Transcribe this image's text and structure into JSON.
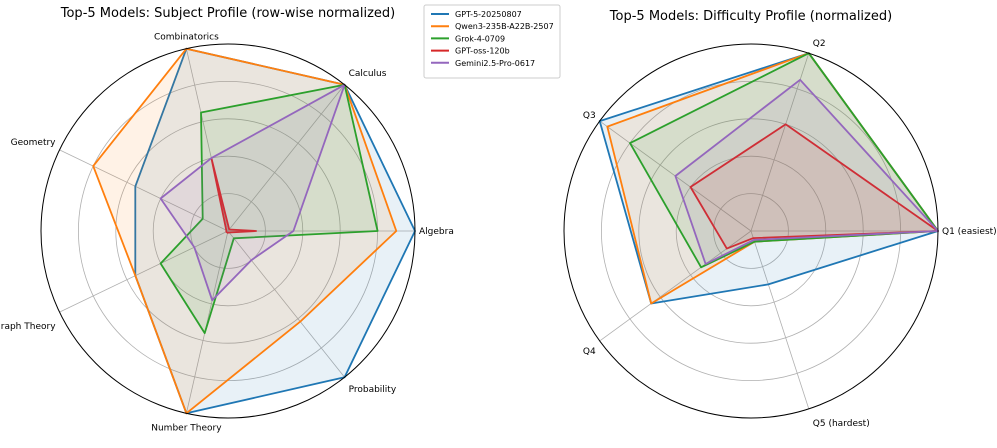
{
  "chart_data": [
    {
      "type": "radar",
      "title": "Top-5 Models: Subject Profile (row-wise normalized)",
      "categories": [
        "Algebra",
        "Calculus",
        "Combinatorics",
        "Geometry",
        "Graph Theory",
        "Number Theory",
        "Probability"
      ],
      "rlim": [
        0,
        1
      ],
      "grid": true,
      "legend": "right",
      "series": [
        {
          "name": "GPT-5-20250807",
          "color": "#1f77b4",
          "values": [
            1.0,
            1.0,
            1.0,
            0.55,
            0.55,
            1.0,
            1.0
          ]
        },
        {
          "name": "Qwen3-235B-A22B-2507",
          "color": "#ff7f0e",
          "values": [
            0.9,
            1.0,
            1.0,
            0.8,
            0.55,
            1.0,
            0.62
          ]
        },
        {
          "name": "Grok-4-0709",
          "color": "#2ca02c",
          "values": [
            0.8,
            1.0,
            0.65,
            0.15,
            0.4,
            0.56,
            0.05
          ]
        },
        {
          "name": "GPT-oss-120b",
          "color": "#d62728",
          "values": [
            0.15,
            0.01,
            0.4,
            0.01,
            0.01,
            0.01,
            0.01
          ]
        },
        {
          "name": "Gemini2.5-Pro-0617",
          "color": "#9467bd",
          "values": [
            0.35,
            1.0,
            0.4,
            0.4,
            0.2,
            0.38,
            0.2
          ]
        }
      ]
    },
    {
      "type": "radar",
      "title": "Top-5 Models: Difficulty Profile (normalized)",
      "categories": [
        "Q1 (easiest)",
        "Q2",
        "Q3",
        "Q4",
        "Q5 (hardest)"
      ],
      "rlim": [
        0,
        1
      ],
      "grid": true,
      "series": [
        {
          "name": "GPT-5-20250807",
          "color": "#1f77b4",
          "values": [
            1.0,
            1.0,
            1.0,
            0.66,
            0.3
          ]
        },
        {
          "name": "Qwen3-235B-A22B-2507",
          "color": "#ff7f0e",
          "values": [
            1.0,
            1.0,
            0.95,
            0.66,
            0.06
          ]
        },
        {
          "name": "Grok-4-0709",
          "color": "#2ca02c",
          "values": [
            1.0,
            1.0,
            0.8,
            0.33,
            0.06
          ]
        },
        {
          "name": "GPT-oss-120b",
          "color": "#d62728",
          "values": [
            1.0,
            0.6,
            0.4,
            0.16,
            0.04
          ]
        },
        {
          "name": "Gemini2.5-Pro-0617",
          "color": "#9467bd",
          "values": [
            1.0,
            0.85,
            0.5,
            0.3,
            0.05
          ]
        }
      ]
    }
  ]
}
